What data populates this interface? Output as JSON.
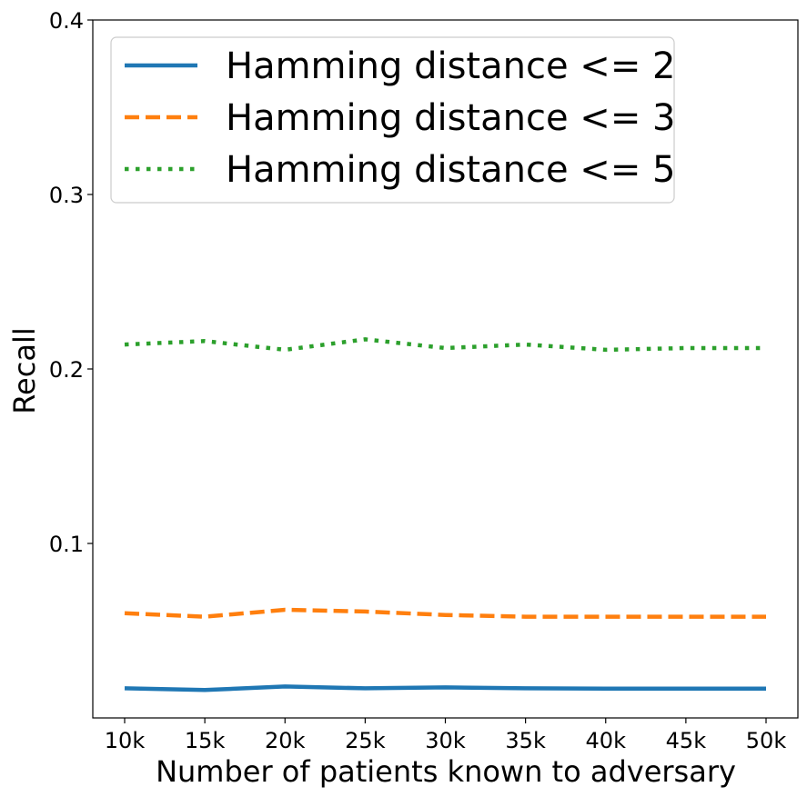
{
  "chart_data": {
    "type": "line",
    "title": "",
    "xlabel": "Number of patients known to adversary",
    "ylabel": "Recall",
    "categories": [
      "10k",
      "15k",
      "20k",
      "25k",
      "30k",
      "35k",
      "40k",
      "45k",
      "50k"
    ],
    "ylim": [
      0.0,
      0.4
    ],
    "yticks": [
      0.1,
      0.2,
      0.3,
      0.4
    ],
    "ytick_labels": [
      "0.1",
      "0.2",
      "0.3",
      "0.4"
    ],
    "grid": false,
    "legend_position": "top-left",
    "series": [
      {
        "name": "Hamming distance <= 2",
        "color": "#1f77b4",
        "style": "solid",
        "values": [
          0.017,
          0.016,
          0.018,
          0.017,
          0.0175,
          0.017,
          0.0168,
          0.0168,
          0.0168
        ]
      },
      {
        "name": "Hamming distance <= 3",
        "color": "#ff7f0e",
        "style": "dashed",
        "values": [
          0.06,
          0.058,
          0.062,
          0.061,
          0.059,
          0.058,
          0.058,
          0.058,
          0.058
        ]
      },
      {
        "name": "Hamming distance <= 5",
        "color": "#2ca02c",
        "style": "dotted",
        "values": [
          0.214,
          0.216,
          0.211,
          0.217,
          0.212,
          0.214,
          0.211,
          0.212,
          0.212
        ]
      }
    ]
  }
}
